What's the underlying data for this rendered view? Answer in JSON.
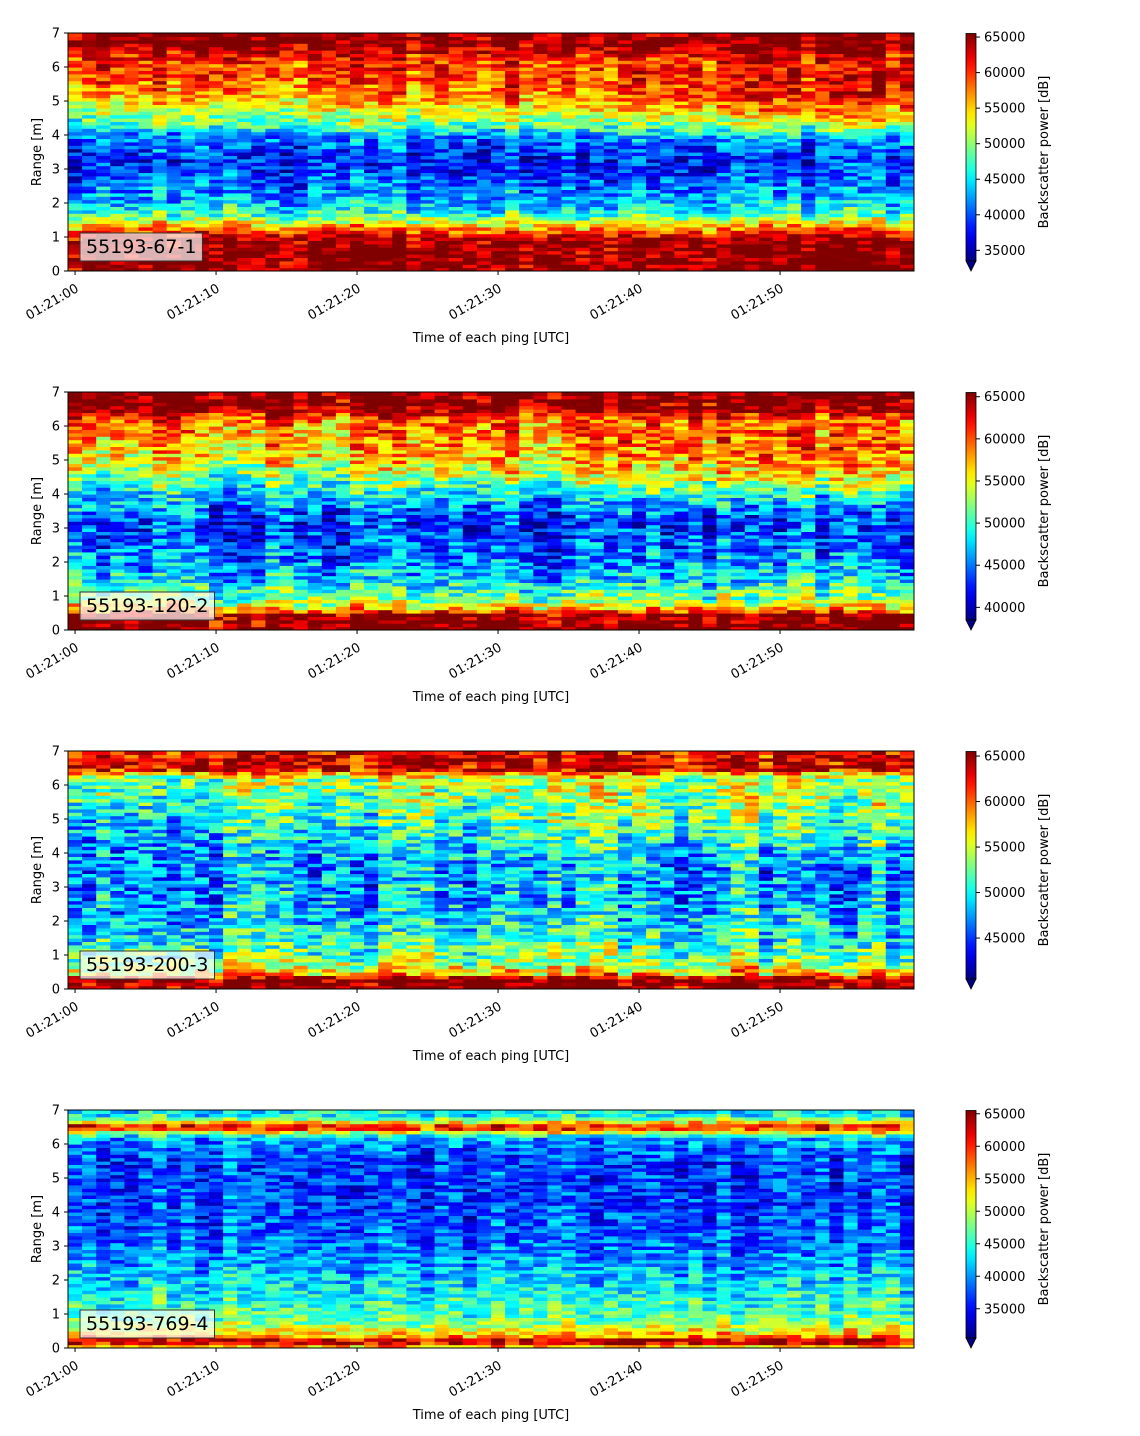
{
  "chart_data": [
    {
      "type": "heatmap",
      "label": "55193-67-1",
      "xlabel": "Time of each ping [UTC]",
      "ylabel": "Range [m]",
      "x_ticks": [
        "01:21:00",
        "01:21:10",
        "01:21:20",
        "01:21:30",
        "01:21:40",
        "01:21:50"
      ],
      "x_range_seconds": [
        0,
        60
      ],
      "y_ticks": [
        0,
        1,
        2,
        3,
        4,
        5,
        6,
        7
      ],
      "ylim": [
        0,
        7
      ],
      "colorbar_label": "Backscatter power [dB]",
      "colorbar_ticks": [
        35000,
        40000,
        45000,
        50000,
        55000,
        60000,
        65000
      ],
      "colorbar_range": [
        33500,
        65500
      ],
      "colormap": "jet",
      "profile": [
        {
          "range": 0.15,
          "value": 65500
        },
        {
          "range": 0.9,
          "value": 65500
        },
        {
          "range": 1.15,
          "value": 60000
        },
        {
          "range": 1.4,
          "value": 54000
        },
        {
          "range": 1.7,
          "value": 47000
        },
        {
          "range": 2.3,
          "value": 42000
        },
        {
          "range": 3.2,
          "value": 38500
        },
        {
          "range": 3.9,
          "value": 41000
        },
        {
          "range": 4.4,
          "value": 47500
        },
        {
          "range": 5.0,
          "value": 54000
        },
        {
          "range": 5.7,
          "value": 58500
        },
        {
          "range": 6.3,
          "value": 61000
        },
        {
          "range": 6.6,
          "value": 65500
        },
        {
          "range": 7.0,
          "value": 65500
        }
      ],
      "late_upper_boost": 6000
    },
    {
      "type": "heatmap",
      "label": "55193-120-2",
      "xlabel": "Time of each ping [UTC]",
      "ylabel": "Range [m]",
      "x_ticks": [
        "01:21:00",
        "01:21:10",
        "01:21:20",
        "01:21:30",
        "01:21:40",
        "01:21:50"
      ],
      "x_range_seconds": [
        0,
        60
      ],
      "y_ticks": [
        0,
        1,
        2,
        3,
        4,
        5,
        6,
        7
      ],
      "ylim": [
        0,
        7
      ],
      "colorbar_label": "Backscatter power [dB]",
      "colorbar_ticks": [
        40000,
        45000,
        50000,
        55000,
        60000,
        65000
      ],
      "colorbar_range": [
        38500,
        65500
      ],
      "colormap": "jet",
      "profile": [
        {
          "range": 0.1,
          "value": 65500
        },
        {
          "range": 0.45,
          "value": 65500
        },
        {
          "range": 0.6,
          "value": 58000
        },
        {
          "range": 0.9,
          "value": 52000
        },
        {
          "range": 1.5,
          "value": 47500
        },
        {
          "range": 2.3,
          "value": 44500
        },
        {
          "range": 3.2,
          "value": 43000
        },
        {
          "range": 3.9,
          "value": 46500
        },
        {
          "range": 4.6,
          "value": 52000
        },
        {
          "range": 5.4,
          "value": 56000
        },
        {
          "range": 6.2,
          "value": 59000
        },
        {
          "range": 6.5,
          "value": 65500
        },
        {
          "range": 7.0,
          "value": 65500
        }
      ],
      "late_upper_boost": 4500
    },
    {
      "type": "heatmap",
      "label": "55193-200-3",
      "xlabel": "Time of each ping [UTC]",
      "ylabel": "Range [m]",
      "x_ticks": [
        "01:21:00",
        "01:21:10",
        "01:21:20",
        "01:21:30",
        "01:21:40",
        "01:21:50"
      ],
      "x_range_seconds": [
        0,
        60
      ],
      "y_ticks": [
        0,
        1,
        2,
        3,
        4,
        5,
        6,
        7
      ],
      "ylim": [
        0,
        7
      ],
      "colorbar_label": "Backscatter power [dB]",
      "colorbar_ticks": [
        45000,
        50000,
        55000,
        60000,
        65000
      ],
      "colorbar_range": [
        40500,
        65500
      ],
      "colormap": "jet",
      "profile": [
        {
          "range": 0.1,
          "value": 65500
        },
        {
          "range": 0.3,
          "value": 65500
        },
        {
          "range": 0.45,
          "value": 58000
        },
        {
          "range": 0.8,
          "value": 53500
        },
        {
          "range": 1.5,
          "value": 50500
        },
        {
          "range": 2.5,
          "value": 48500
        },
        {
          "range": 3.5,
          "value": 47500
        },
        {
          "range": 4.5,
          "value": 48500
        },
        {
          "range": 5.5,
          "value": 51500
        },
        {
          "range": 6.2,
          "value": 54000
        },
        {
          "range": 6.5,
          "value": 64500
        },
        {
          "range": 7.0,
          "value": 63000
        }
      ],
      "late_upper_boost": 3500
    },
    {
      "type": "heatmap",
      "label": "55193-769-4",
      "xlabel": "Time of each ping [UTC]",
      "ylabel": "Range [m]",
      "x_ticks": [
        "01:21:00",
        "01:21:10",
        "01:21:20",
        "01:21:30",
        "01:21:40",
        "01:21:50"
      ],
      "x_range_seconds": [
        0,
        60
      ],
      "y_ticks": [
        0,
        1,
        2,
        3,
        4,
        5,
        6,
        7
      ],
      "ylim": [
        0,
        7
      ],
      "colorbar_label": "Backscatter power [dB]",
      "colorbar_ticks": [
        35000,
        40000,
        45000,
        50000,
        55000,
        60000,
        65000
      ],
      "colorbar_range": [
        30500,
        65500
      ],
      "colormap": "jet",
      "profile": [
        {
          "range": 0.05,
          "value": 55000
        },
        {
          "range": 0.2,
          "value": 65500
        },
        {
          "range": 0.35,
          "value": 56000
        },
        {
          "range": 0.8,
          "value": 47500
        },
        {
          "range": 1.5,
          "value": 44500
        },
        {
          "range": 2.5,
          "value": 40500
        },
        {
          "range": 3.5,
          "value": 38000
        },
        {
          "range": 4.5,
          "value": 37000
        },
        {
          "range": 5.5,
          "value": 37000
        },
        {
          "range": 6.2,
          "value": 40500
        },
        {
          "range": 6.5,
          "value": 63000
        },
        {
          "range": 6.8,
          "value": 44500
        },
        {
          "range": 7.0,
          "value": 43000
        }
      ],
      "late_upper_boost": 0
    }
  ]
}
